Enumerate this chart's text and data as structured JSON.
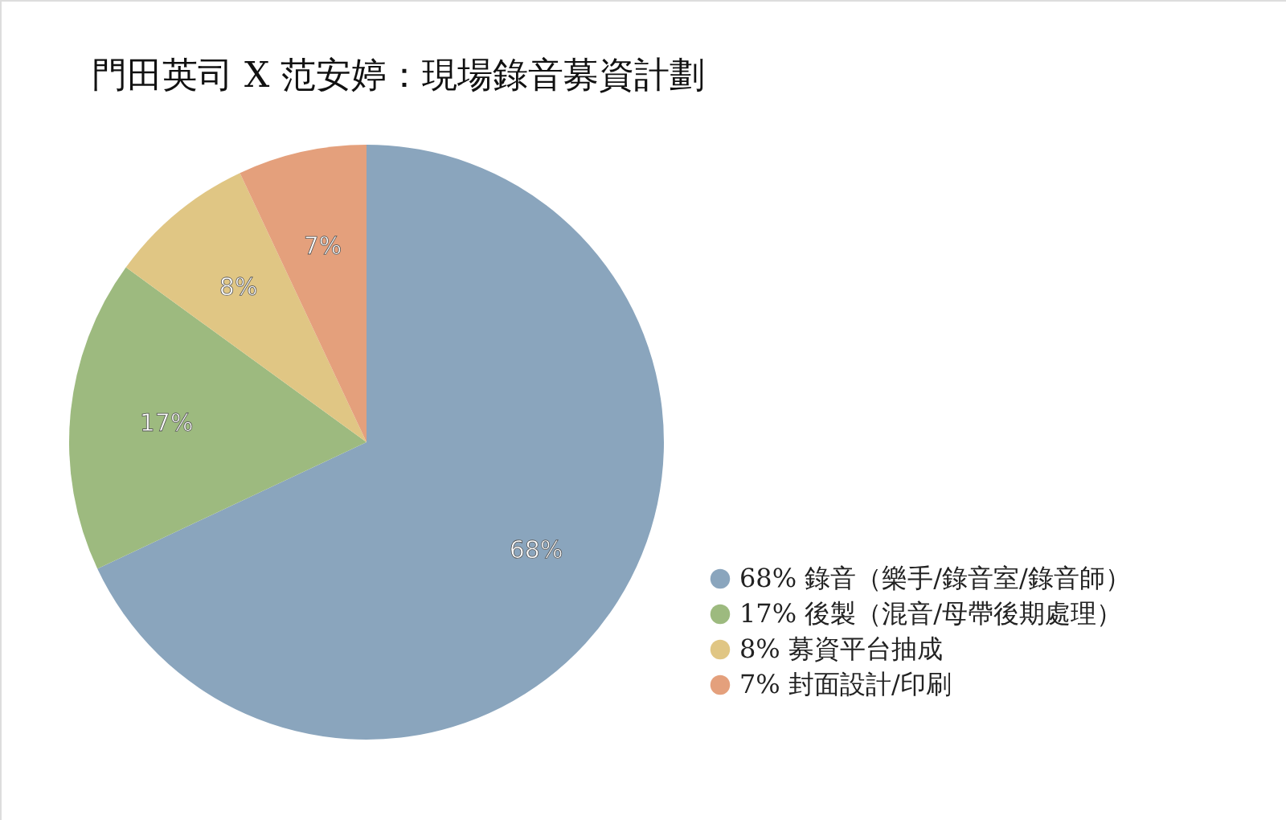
{
  "chart_data": {
    "type": "pie",
    "title": "門田英司 X 范安婷：現場錄音募資計劃",
    "categories": [
      "68% 錄音（樂手/錄音室/錄音師）",
      "17% 後製（混音/母帶後期處理）",
      "8% 募資平台抽成",
      "7% 封面設計/印刷"
    ],
    "values": [
      68,
      17,
      8,
      7
    ],
    "value_labels": [
      "68%",
      "17%",
      "8%",
      "7%"
    ],
    "colors": [
      "#8aa5bd",
      "#9dba7f",
      "#e0c684",
      "#e4a07c"
    ],
    "legend": "bottom right"
  }
}
